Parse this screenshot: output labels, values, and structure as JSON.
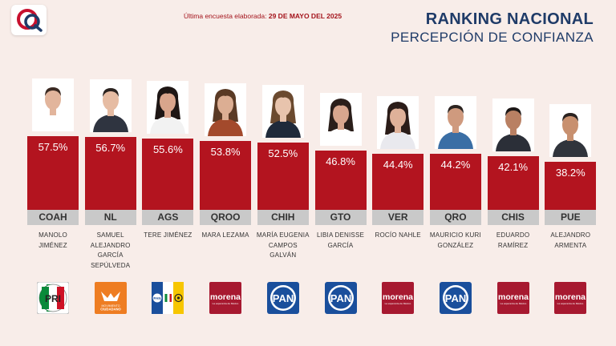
{
  "survey_note": {
    "label": "Última encuesta elaborada:",
    "date": "29 DE MAYO DEL 2025"
  },
  "header": {
    "title": "RANKING NACIONAL",
    "subtitle": "PERCEPCIÓN DE CONFIANZA"
  },
  "colors": {
    "bar": "#b3141f",
    "state_band": "#c9c9c9",
    "title": "#1f3b68",
    "morena": "#a71930",
    "pan": "#1a4f9c",
    "mc": "#ee7d22"
  },
  "chart_data": {
    "type": "bar",
    "title": "RANKING NACIONAL",
    "subtitle": "PERCEPCIÓN DE CONFIANZA",
    "unit": "%",
    "categories": [
      "COAH",
      "NL",
      "AGS",
      "QROO",
      "CHIH",
      "GTO",
      "VER",
      "QRO",
      "CHIS",
      "PUE"
    ],
    "values": [
      57.5,
      56.7,
      55.6,
      53.8,
      52.5,
      46.8,
      44.4,
      44.2,
      42.1,
      38.2
    ],
    "value_labels": [
      "57.5%",
      "56.7%",
      "55.6%",
      "53.8%",
      "52.5%",
      "46.8%",
      "44.4%",
      "44.2%",
      "42.1%",
      "38.2%"
    ],
    "names": [
      [
        "MANOLO JIMÉNEZ"
      ],
      [
        "SAMUEL",
        "ALEJANDRO",
        "GARCÍA",
        "SEPÚLVEDA"
      ],
      [
        "TERE JIMÉNEZ"
      ],
      [
        "MARA LEZAMA"
      ],
      [
        "MARÍA EUGENIA",
        "CAMPOS",
        "GALVÁN"
      ],
      [
        "LIBIA DENISSE",
        "GARCÍA"
      ],
      [
        "ROCÍO NAHLE"
      ],
      [
        "MAURICIO KURI",
        "GONZÁLEZ"
      ],
      [
        "EDUARDO",
        "RAMÍREZ"
      ],
      [
        "ALEJANDRO",
        "ARMENTA"
      ]
    ],
    "parties": [
      "pri",
      "mc",
      "pan-pri-prd",
      "morena",
      "pan",
      "pan",
      "morena",
      "pan",
      "morena",
      "morena"
    ],
    "photo_icons": [
      "person-photo",
      "person-photo",
      "person-photo",
      "person-photo",
      "person-photo",
      "person-photo",
      "person-photo",
      "person-photo",
      "person-photo",
      "person-photo"
    ],
    "legend": "none",
    "grid": false
  },
  "party_logos": {
    "pri": {
      "icon": "pri-logo-icon",
      "text": "PRI"
    },
    "mc": {
      "icon": "movimiento-ciudadano-logo-icon",
      "text": "MOVIMIENTO CIUDADANO"
    },
    "pan-pri-prd": {
      "icon": "coalition-logo-icon",
      "text": "PAN PRI PRD"
    },
    "morena": {
      "icon": "morena-logo-icon",
      "text": "morena",
      "tagline": "La esperanza de México"
    },
    "pan": {
      "icon": "pan-logo-icon",
      "text": "PAN"
    }
  }
}
